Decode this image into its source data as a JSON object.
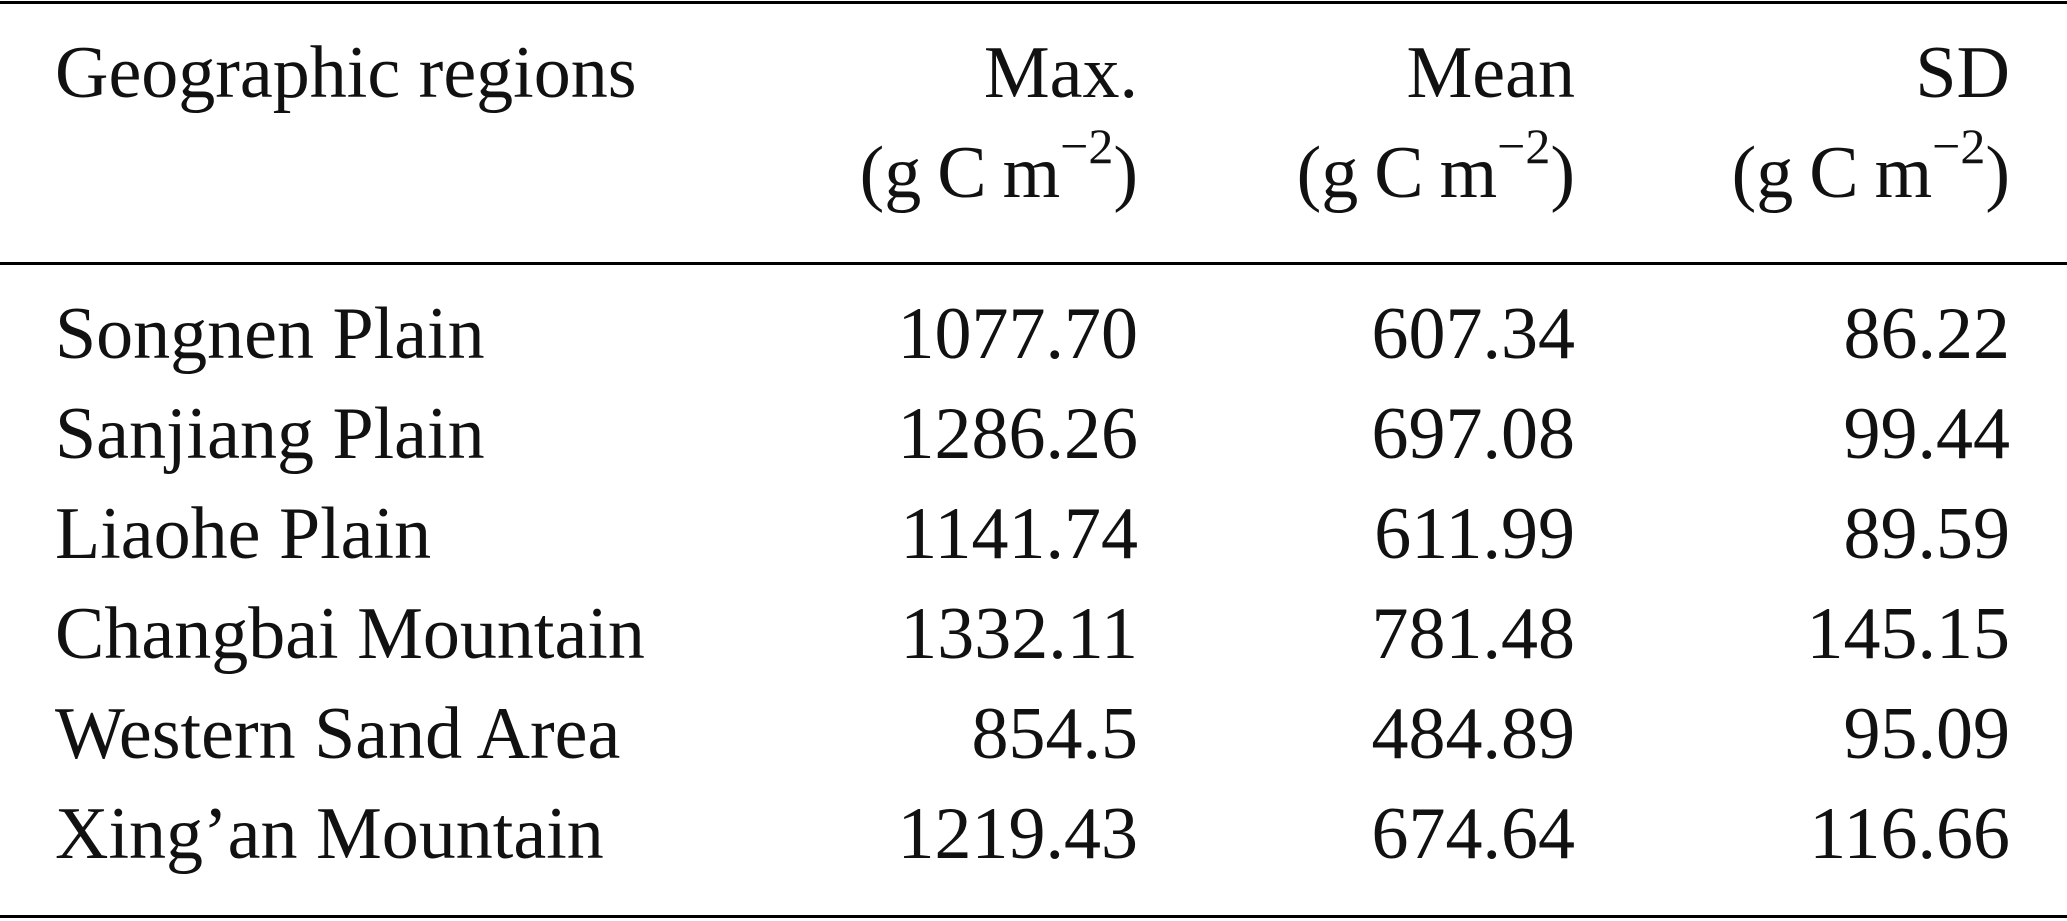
{
  "table": {
    "headers": {
      "region": "Geographic regions",
      "max": "Max.",
      "mean": "Mean",
      "sd": "SD",
      "unit": {
        "open": "(",
        "g": "g",
        "c": "C",
        "m": "m",
        "exp": "−2",
        "close": ")"
      }
    },
    "rows": [
      {
        "region": "Songnen Plain",
        "max": "1077.70",
        "mean": "607.34",
        "sd": "86.22"
      },
      {
        "region": "Sanjiang Plain",
        "max": "1286.26",
        "mean": "697.08",
        "sd": "99.44"
      },
      {
        "region": "Liaohe Plain",
        "max": "1141.74",
        "mean": "611.99",
        "sd": "89.59"
      },
      {
        "region": "Changbai Mountain",
        "max": "1332.11",
        "mean": "781.48",
        "sd": "145.15"
      },
      {
        "region": "Western Sand Area",
        "max": "854.5",
        "mean": "484.89",
        "sd": "95.09"
      },
      {
        "region": "Xing’an Mountain",
        "max": "1219.43",
        "mean": "674.64",
        "sd": "116.66"
      }
    ]
  }
}
